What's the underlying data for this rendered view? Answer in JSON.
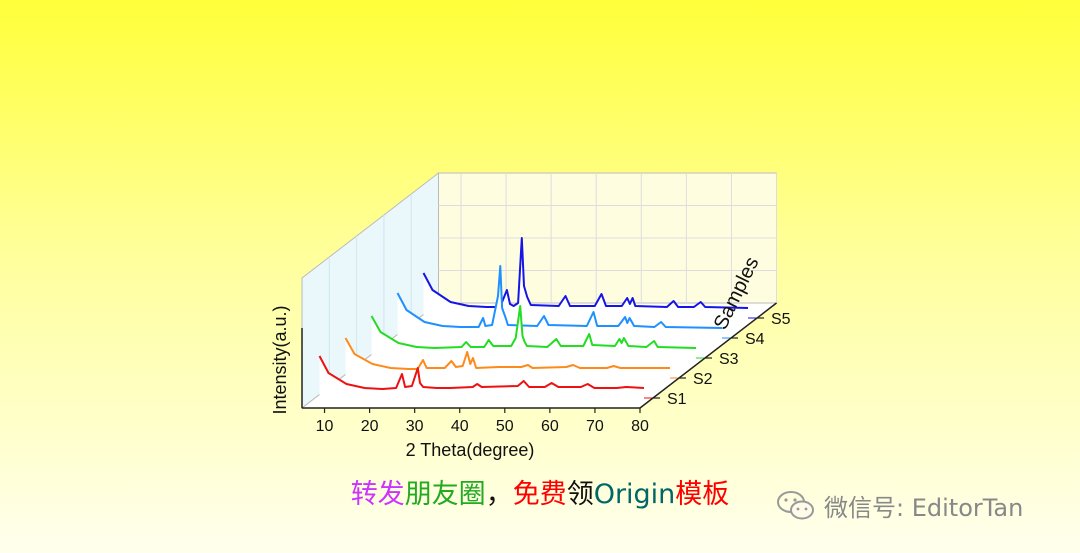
{
  "chart_data": {
    "type": "line",
    "style": "3d-waterfall",
    "xlabel": "2 Theta(degree)",
    "ylabel": "Intensity(a.u.)",
    "zlabel": "Samples",
    "xlim": [
      5,
      80
    ],
    "xticks": [
      "10",
      "20",
      "30",
      "40",
      "50",
      "60",
      "70",
      "80"
    ],
    "series": [
      {
        "name": "S1",
        "color": "#ee1111",
        "points": [
          [
            6,
            42
          ],
          [
            8,
            25
          ],
          [
            12,
            14
          ],
          [
            16,
            10
          ],
          [
            20,
            9
          ],
          [
            23,
            10
          ],
          [
            24.3,
            24
          ],
          [
            25,
            11
          ],
          [
            26.5,
            12
          ],
          [
            27.8,
            30
          ],
          [
            28.3,
            15
          ],
          [
            29,
            11
          ],
          [
            32,
            10
          ],
          [
            35,
            10
          ],
          [
            40,
            11
          ],
          [
            41,
            14
          ],
          [
            42,
            11
          ],
          [
            50,
            12
          ],
          [
            51.3,
            17
          ],
          [
            52.5,
            11
          ],
          [
            56,
            11
          ],
          [
            57.5,
            15
          ],
          [
            59,
            11
          ],
          [
            64,
            11
          ],
          [
            65.5,
            14
          ],
          [
            67,
            10
          ],
          [
            72,
            10
          ],
          [
            74,
            11
          ],
          [
            78,
            10
          ]
        ]
      },
      {
        "name": "S2",
        "color": "#ff8a1c",
        "points": [
          [
            6,
            40
          ],
          [
            8,
            24
          ],
          [
            12,
            14
          ],
          [
            16,
            10
          ],
          [
            20,
            9
          ],
          [
            22,
            9
          ],
          [
            23.2,
            18
          ],
          [
            24,
            10
          ],
          [
            28,
            10
          ],
          [
            29.5,
            17
          ],
          [
            30.5,
            11
          ],
          [
            32,
            12
          ],
          [
            33,
            26
          ],
          [
            33.7,
            14
          ],
          [
            34.3,
            20
          ],
          [
            35,
            10
          ],
          [
            40,
            11
          ],
          [
            45,
            11
          ],
          [
            46.5,
            13
          ],
          [
            47.5,
            10
          ],
          [
            55,
            11
          ],
          [
            56.5,
            13
          ],
          [
            58,
            10
          ],
          [
            64,
            10
          ],
          [
            65.5,
            12
          ],
          [
            67,
            10
          ],
          [
            72,
            10
          ],
          [
            78,
            10
          ]
        ]
      },
      {
        "name": "S3",
        "color": "#22dd22",
        "points": [
          [
            6,
            42
          ],
          [
            8,
            26
          ],
          [
            12,
            15
          ],
          [
            16,
            11
          ],
          [
            20,
            10
          ],
          [
            26,
            11
          ],
          [
            27,
            16
          ],
          [
            28,
            11
          ],
          [
            31,
            11
          ],
          [
            32,
            18
          ],
          [
            33,
            12
          ],
          [
            37,
            12
          ],
          [
            38,
            20
          ],
          [
            39,
            52
          ],
          [
            39.5,
            22
          ],
          [
            40,
            16
          ],
          [
            40.5,
            12
          ],
          [
            45,
            11
          ],
          [
            47,
            19
          ],
          [
            48,
            12
          ],
          [
            53,
            12
          ],
          [
            54.3,
            24
          ],
          [
            55,
            13
          ],
          [
            60,
            12
          ],
          [
            61,
            19
          ],
          [
            61.5,
            15
          ],
          [
            62,
            20
          ],
          [
            63,
            12
          ],
          [
            67,
            11
          ],
          [
            68.7,
            17
          ],
          [
            69.5,
            11
          ],
          [
            78,
            10
          ]
        ]
      },
      {
        "name": "S4",
        "color": "#1e90ff",
        "points": [
          [
            6,
            45
          ],
          [
            8,
            28
          ],
          [
            12,
            16
          ],
          [
            16,
            12
          ],
          [
            20,
            11
          ],
          [
            24,
            11
          ],
          [
            25,
            20
          ],
          [
            25.5,
            12
          ],
          [
            27,
            13
          ],
          [
            28.3,
            42
          ],
          [
            28.8,
            72
          ],
          [
            29.2,
            30
          ],
          [
            30,
            20
          ],
          [
            30.5,
            13
          ],
          [
            37,
            12
          ],
          [
            38.5,
            22
          ],
          [
            39.5,
            13
          ],
          [
            48,
            12
          ],
          [
            49.5,
            26
          ],
          [
            50.3,
            12
          ],
          [
            55,
            12
          ],
          [
            56.5,
            21
          ],
          [
            57,
            15
          ],
          [
            57.5,
            20
          ],
          [
            58.5,
            12
          ],
          [
            63,
            11
          ],
          [
            64.5,
            16
          ],
          [
            65.5,
            11
          ],
          [
            78,
            10
          ]
        ]
      },
      {
        "name": "S5",
        "color": "#1515e6",
        "points": [
          [
            6,
            45
          ],
          [
            8,
            28
          ],
          [
            12,
            16
          ],
          [
            16,
            12
          ],
          [
            20,
            11
          ],
          [
            23,
            11
          ],
          [
            24.5,
            28
          ],
          [
            25.2,
            14
          ],
          [
            26,
            12
          ],
          [
            27,
            15
          ],
          [
            27.8,
            80
          ],
          [
            28.3,
            32
          ],
          [
            29,
            21
          ],
          [
            29.8,
            13
          ],
          [
            36,
            12
          ],
          [
            37.5,
            22
          ],
          [
            38.5,
            12
          ],
          [
            44,
            12
          ],
          [
            45.5,
            24
          ],
          [
            46.5,
            12
          ],
          [
            50,
            12
          ],
          [
            51.2,
            20
          ],
          [
            51.8,
            14
          ],
          [
            52.4,
            20
          ],
          [
            53,
            12
          ],
          [
            60,
            11
          ],
          [
            61.5,
            17
          ],
          [
            62.5,
            11
          ],
          [
            66,
            11
          ],
          [
            67.5,
            16
          ],
          [
            68.5,
            11
          ],
          [
            78,
            10
          ]
        ]
      }
    ]
  },
  "caption": {
    "part1": "转发",
    "part2": "朋友圈",
    "part3": "，",
    "part4": "免费",
    "part5": "领",
    "part6": "Origin",
    "part7": "模板",
    "color1": "#cc33ff",
    "color2": "#22aa22",
    "color3": "#ff0000",
    "color4": "#111111",
    "color5": "#006666",
    "color6": "#ff0000"
  },
  "watermark": {
    "text": "微信号: EditorTan",
    "icon": "wechat-icon"
  }
}
